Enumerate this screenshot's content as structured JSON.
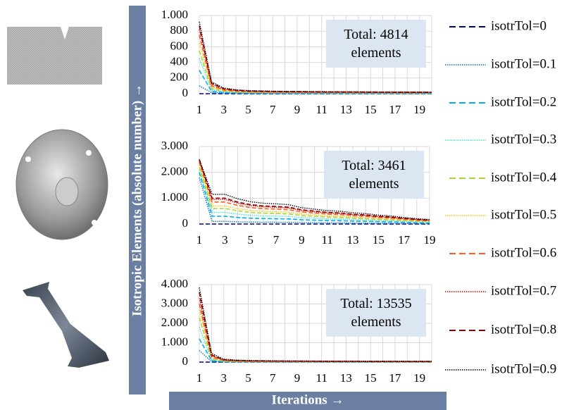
{
  "ylabel": "Isotropic Elements (absolute number) →",
  "xlabel": "Iterations →",
  "chart_data": [
    {
      "type": "line",
      "annotation": "Total: 4814 elements",
      "x": [
        1,
        2,
        3,
        4,
        5,
        6,
        7,
        8,
        9,
        10,
        11,
        12,
        13,
        14,
        15,
        16,
        17,
        18,
        19,
        20
      ],
      "xlim": [
        1,
        20
      ],
      "xticks": [
        1,
        3,
        5,
        7,
        9,
        11,
        13,
        15,
        17,
        19
      ],
      "ylim": [
        0,
        1000
      ],
      "yticks": [
        0,
        200,
        400,
        600,
        800,
        {
          "value": 1000,
          "label": "1.000"
        }
      ],
      "grid": true,
      "series": [
        {
          "name": "isotrTol=0",
          "color": "#00008b",
          "dash": "dashed",
          "values": [
            0,
            0,
            0,
            0,
            0,
            0,
            0,
            0,
            0,
            0,
            0,
            0,
            0,
            0,
            0,
            0,
            0,
            0,
            0,
            0
          ]
        },
        {
          "name": "isotrTol=0.1",
          "color": "#0070c0",
          "dash": "dotted",
          "values": [
            100,
            15,
            8,
            6,
            4,
            4,
            4,
            3,
            3,
            3,
            3,
            3,
            3,
            3,
            3,
            2,
            2,
            2,
            2,
            2
          ]
        },
        {
          "name": "isotrTol=0.2",
          "color": "#00b0f0",
          "dash": "dashed",
          "values": [
            300,
            30,
            16,
            11,
            9,
            8,
            7,
            7,
            6,
            6,
            6,
            6,
            5,
            5,
            5,
            5,
            5,
            5,
            5,
            4
          ]
        },
        {
          "name": "isotrTol=0.3",
          "color": "#3fe0d0",
          "dash": "dotted",
          "values": [
            450,
            50,
            24,
            17,
            13,
            12,
            11,
            10,
            10,
            9,
            9,
            8,
            8,
            8,
            8,
            7,
            7,
            7,
            7,
            7
          ]
        },
        {
          "name": "isotrTol=0.4",
          "color": "#a8d832",
          "dash": "dashed",
          "values": [
            550,
            65,
            32,
            22,
            18,
            16,
            14,
            13,
            13,
            12,
            12,
            11,
            11,
            11,
            10,
            10,
            10,
            10,
            9,
            9
          ]
        },
        {
          "name": "isotrTol=0.5",
          "color": "#ffc000",
          "dash": "dotted",
          "values": [
            650,
            85,
            40,
            28,
            22,
            20,
            18,
            17,
            16,
            15,
            14,
            14,
            14,
            13,
            13,
            12,
            12,
            12,
            12,
            11
          ]
        },
        {
          "name": "isotrTol=0.6",
          "color": "#ff5a1f",
          "dash": "dashed",
          "values": [
            750,
            100,
            48,
            34,
            26,
            24,
            22,
            20,
            19,
            18,
            17,
            17,
            16,
            16,
            15,
            15,
            14,
            14,
            14,
            13
          ]
        },
        {
          "name": "isotrTol=0.7",
          "color": "#e00000",
          "dash": "dotted",
          "values": [
            820,
            120,
            56,
            39,
            31,
            28,
            25,
            24,
            22,
            21,
            20,
            20,
            19,
            18,
            18,
            17,
            17,
            17,
            16,
            16
          ]
        },
        {
          "name": "isotrTol=0.8",
          "color": "#8b0000",
          "dash": "dashed",
          "values": [
            870,
            135,
            64,
            45,
            35,
            32,
            29,
            27,
            26,
            24,
            23,
            22,
            22,
            21,
            20,
            20,
            19,
            19,
            19,
            18
          ]
        },
        {
          "name": "isotrTol=0.9",
          "color": "#000000",
          "dash": "dotted",
          "values": [
            920,
            150,
            72,
            50,
            40,
            36,
            32,
            30,
            29,
            27,
            26,
            25,
            24,
            24,
            23,
            22,
            22,
            22,
            21,
            20
          ]
        }
      ]
    },
    {
      "type": "line",
      "annotation": "Total: 3461 elements",
      "x": [
        1,
        2,
        3,
        4,
        5,
        6,
        7,
        8,
        9,
        10,
        11,
        12,
        13,
        14,
        15,
        16,
        17,
        18,
        19
      ],
      "xlim": [
        1,
        19
      ],
      "xticks": [
        1,
        3,
        5,
        7,
        9,
        11,
        13,
        15,
        17,
        19
      ],
      "ylim": [
        0,
        3000
      ],
      "yticks": [
        0,
        {
          "value": 1000,
          "label": "1.000"
        },
        {
          "value": 2000,
          "label": "2.000"
        },
        {
          "value": 3000,
          "label": "3.000"
        }
      ],
      "grid": true,
      "series": [
        {
          "color": "#00008b",
          "dash": "dashed",
          "values": [
            0,
            0,
            0,
            0,
            0,
            0,
            0,
            0,
            0,
            0,
            0,
            0,
            0,
            0,
            0,
            0,
            0,
            0,
            0
          ]
        },
        {
          "color": "#0070c0",
          "dash": "dotted",
          "values": [
            1800,
            100,
            100,
            85,
            75,
            70,
            68,
            65,
            55,
            50,
            45,
            43,
            38,
            35,
            30,
            27,
            22,
            18,
            15
          ]
        },
        {
          "color": "#00b0f0",
          "dash": "dashed",
          "values": [
            2000,
            300,
            300,
            255,
            225,
            210,
            204,
            195,
            165,
            150,
            135,
            129,
            114,
            105,
            90,
            81,
            66,
            54,
            45
          ]
        },
        {
          "color": "#3fe0d0",
          "dash": "dotted",
          "values": [
            2100,
            450,
            450,
            383,
            338,
            315,
            306,
            293,
            248,
            225,
            203,
            194,
            171,
            158,
            135,
            122,
            99,
            81,
            68
          ]
        },
        {
          "color": "#a8d832",
          "dash": "dashed",
          "values": [
            2200,
            600,
            600,
            510,
            450,
            420,
            408,
            390,
            330,
            300,
            270,
            258,
            228,
            210,
            180,
            162,
            132,
            108,
            90
          ]
        },
        {
          "color": "#ffc000",
          "dash": "dotted",
          "values": [
            2300,
            700,
            700,
            595,
            525,
            490,
            476,
            455,
            385,
            350,
            315,
            301,
            266,
            245,
            210,
            189,
            154,
            126,
            105
          ]
        },
        {
          "color": "#ff5a1f",
          "dash": "dashed",
          "values": [
            2400,
            850,
            850,
            723,
            638,
            595,
            578,
            553,
            468,
            425,
            383,
            366,
            323,
            298,
            255,
            230,
            187,
            153,
            128
          ]
        },
        {
          "color": "#e00000",
          "dash": "dotted",
          "values": [
            2450,
            950,
            950,
            808,
            713,
            665,
            646,
            618,
            523,
            475,
            428,
            409,
            361,
            333,
            285,
            257,
            209,
            171,
            143
          ]
        },
        {
          "color": "#8b0000",
          "dash": "dashed",
          "values": [
            2500,
            1000,
            1000,
            850,
            750,
            700,
            680,
            650,
            550,
            500,
            450,
            430,
            380,
            350,
            300,
            270,
            220,
            180,
            150
          ]
        },
        {
          "color": "#000000",
          "dash": "dotted",
          "values": [
            2500,
            1150,
            1150,
            978,
            863,
            805,
            782,
            748,
            633,
            575,
            518,
            495,
            437,
            403,
            345,
            311,
            253,
            207,
            173
          ]
        }
      ]
    },
    {
      "type": "line",
      "annotation": "Total: 13535 elements",
      "x": [
        1,
        2,
        3,
        4,
        5,
        6,
        7,
        8,
        9,
        10,
        11,
        12,
        13,
        14,
        15,
        16,
        17,
        18,
        19,
        20
      ],
      "xlim": [
        1,
        20
      ],
      "xticks": [
        1,
        3,
        5,
        7,
        9,
        11,
        13,
        15,
        17,
        19
      ],
      "ylim": [
        0,
        4000
      ],
      "yticks": [
        0,
        {
          "value": 1000,
          "label": "1.000"
        },
        {
          "value": 2000,
          "label": "2.000"
        },
        {
          "value": 3000,
          "label": "3.000"
        },
        {
          "value": 4000,
          "label": "4.000"
        }
      ],
      "grid": true,
      "series": [
        {
          "color": "#00008b",
          "dash": "dashed",
          "values": [
            0,
            0,
            0,
            0,
            0,
            0,
            0,
            0,
            0,
            0,
            0,
            0,
            0,
            0,
            0,
            0,
            0,
            0,
            0,
            0
          ]
        },
        {
          "color": "#0070c0",
          "dash": "dotted",
          "values": [
            600,
            30,
            10,
            7,
            6,
            5,
            5,
            4,
            4,
            4,
            4,
            4,
            3,
            3,
            3,
            3,
            3,
            3,
            3,
            3
          ]
        },
        {
          "color": "#00b0f0",
          "dash": "dashed",
          "values": [
            1200,
            80,
            25,
            18,
            14,
            13,
            11,
            11,
            10,
            10,
            9,
            9,
            9,
            8,
            8,
            8,
            8,
            8,
            7,
            7
          ]
        },
        {
          "color": "#3fe0d0",
          "dash": "dotted",
          "values": [
            1800,
            120,
            40,
            28,
            22,
            20,
            18,
            17,
            16,
            15,
            14,
            14,
            14,
            13,
            13,
            12,
            12,
            12,
            12,
            11
          ]
        },
        {
          "color": "#a8d832",
          "dash": "dashed",
          "values": [
            2300,
            170,
            55,
            39,
            30,
            28,
            25,
            23,
            22,
            21,
            20,
            19,
            19,
            18,
            18,
            17,
            17,
            17,
            16,
            15
          ]
        },
        {
          "color": "#ffc000",
          "dash": "dotted",
          "values": [
            2700,
            220,
            70,
            49,
            39,
            35,
            32,
            29,
            28,
            27,
            25,
            25,
            24,
            23,
            22,
            22,
            21,
            21,
            20,
            20
          ]
        },
        {
          "color": "#ff5a1f",
          "dash": "dashed",
          "values": [
            3000,
            270,
            85,
            60,
            47,
            43,
            38,
            36,
            34,
            32,
            31,
            30,
            29,
            28,
            27,
            26,
            26,
            26,
            25,
            24
          ]
        },
        {
          "color": "#e00000",
          "dash": "dotted",
          "values": [
            3300,
            320,
            100,
            70,
            55,
            50,
            45,
            42,
            40,
            38,
            36,
            35,
            34,
            33,
            32,
            31,
            30,
            30,
            29,
            28
          ]
        },
        {
          "color": "#8b0000",
          "dash": "dashed",
          "values": [
            3600,
            370,
            120,
            84,
            66,
            60,
            54,
            50,
            48,
            46,
            43,
            42,
            41,
            40,
            38,
            37,
            36,
            36,
            35,
            34
          ]
        },
        {
          "color": "#000000",
          "dash": "dotted",
          "values": [
            3850,
            450,
            150,
            105,
            83,
            75,
            68,
            63,
            60,
            57,
            54,
            53,
            51,
            50,
            48,
            47,
            45,
            45,
            44,
            42
          ]
        }
      ]
    }
  ]
}
